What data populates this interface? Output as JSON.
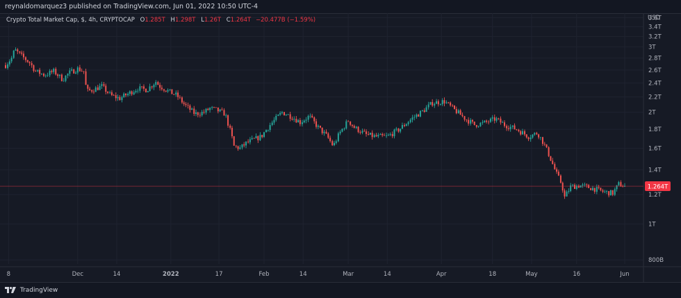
{
  "header": {
    "published_line": "reynaldomarquez3 published on TradingView.com, Jun 01, 2022 10:50 UTC-4"
  },
  "legend": {
    "symbol": "Crypto Total Market Cap, $, 4h, CRYPTOCAP",
    "o_label": "O",
    "o_value": "1.285T",
    "h_label": "H",
    "h_value": "1.298T",
    "l_label": "L",
    "l_value": "1.26T",
    "c_label": "C",
    "c_value": "1.264T",
    "change": "−20.477B (−1.59%)"
  },
  "footer": {
    "brand": "TradingView"
  },
  "colors": {
    "up": "#26a69a",
    "down": "#ef5350",
    "grid": "#1f2330",
    "background": "#161a25",
    "price_badge": "#f23645"
  },
  "chart_data": {
    "type": "candlestick",
    "currency_label": "USD",
    "y_scale": "log",
    "ylim": [
      "780B",
      "3.7T"
    ],
    "y_ticks": [
      {
        "value": 0.8,
        "label": "800B"
      },
      {
        "value": 1.0,
        "label": "1T"
      },
      {
        "value": 1.2,
        "label": "1.2T"
      },
      {
        "value": 1.4,
        "label": "1.4T"
      },
      {
        "value": 1.6,
        "label": "1.6T"
      },
      {
        "value": 1.8,
        "label": "1.8T"
      },
      {
        "value": 2.0,
        "label": "2T"
      },
      {
        "value": 2.2,
        "label": "2.2T"
      },
      {
        "value": 2.4,
        "label": "2.4T"
      },
      {
        "value": 2.6,
        "label": "2.6T"
      },
      {
        "value": 2.8,
        "label": "2.8T"
      },
      {
        "value": 3.0,
        "label": "3T"
      },
      {
        "value": 3.2,
        "label": "3.2T"
      },
      {
        "value": 3.4,
        "label": "3.4T"
      },
      {
        "value": 3.6,
        "label": "3.6T"
      }
    ],
    "x_ticks": [
      {
        "date": "2021-11-08",
        "label": "8"
      },
      {
        "date": "2021-12-01",
        "label": "Dec"
      },
      {
        "date": "2021-12-14",
        "label": "14"
      },
      {
        "date": "2022-01-01",
        "label": "2022",
        "bold": true
      },
      {
        "date": "2022-01-17",
        "label": "17"
      },
      {
        "date": "2022-02-01",
        "label": "Feb"
      },
      {
        "date": "2022-02-14",
        "label": "14"
      },
      {
        "date": "2022-03-01",
        "label": "Mar"
      },
      {
        "date": "2022-03-14",
        "label": "14"
      },
      {
        "date": "2022-04-01",
        "label": "Apr"
      },
      {
        "date": "2022-04-18",
        "label": "18"
      },
      {
        "date": "2022-05-01",
        "label": "May"
      },
      {
        "date": "2022-05-16",
        "label": "16"
      },
      {
        "date": "2022-06-01",
        "label": "Jun"
      }
    ],
    "x_range": [
      "2021-11-07",
      "2022-06-04"
    ],
    "last_price": {
      "value": 1.264,
      "label": "1.264T"
    },
    "series": [
      {
        "x": [
          "2021-11-07",
          "2021-11-09",
          "2021-11-10",
          "2021-11-12",
          "2021-11-15",
          "2021-11-17",
          "2021-11-20",
          "2021-11-23",
          "2021-11-26",
          "2021-11-28",
          "2021-12-01",
          "2021-12-03",
          "2021-12-04",
          "2021-12-04",
          "2021-12-06",
          "2021-12-09",
          "2021-12-12",
          "2021-12-15",
          "2021-12-18",
          "2021-12-21",
          "2021-12-24",
          "2021-12-27",
          "2021-12-28",
          "2022-01-01",
          "2022-01-03",
          "2022-01-05",
          "2022-01-06",
          "2022-01-09",
          "2022-01-12",
          "2022-01-14",
          "2022-01-16",
          "2022-01-19",
          "2022-01-21",
          "2022-01-22",
          "2022-01-24",
          "2022-01-26",
          "2022-01-28",
          "2022-01-31",
          "2022-02-03",
          "2022-02-07",
          "2022-02-10",
          "2022-02-13",
          "2022-02-16",
          "2022-02-19",
          "2022-02-22",
          "2022-02-24",
          "2022-02-26",
          "2022-03-01",
          "2022-03-03",
          "2022-03-07",
          "2022-03-10",
          "2022-03-14",
          "2022-03-18",
          "2022-03-22",
          "2022-03-26",
          "2022-03-29",
          "2022-04-02",
          "2022-04-05",
          "2022-04-09",
          "2022-04-12",
          "2022-04-15",
          "2022-04-19",
          "2022-04-22",
          "2022-04-26",
          "2022-04-30",
          "2022-05-03",
          "2022-05-05",
          "2022-05-07",
          "2022-05-09",
          "2022-05-11",
          "2022-05-12",
          "2022-05-14",
          "2022-05-17",
          "2022-05-21",
          "2022-05-25",
          "2022-05-28",
          "2022-05-30",
          "2022-06-01"
        ],
        "y": [
          2.68,
          2.8,
          2.95,
          2.85,
          2.72,
          2.58,
          2.52,
          2.58,
          2.45,
          2.55,
          2.62,
          2.58,
          2.25,
          2.28,
          2.3,
          2.35,
          2.22,
          2.18,
          2.25,
          2.32,
          2.3,
          2.42,
          2.36,
          2.26,
          2.22,
          2.12,
          2.08,
          1.98,
          2.0,
          2.05,
          2.03,
          1.98,
          1.75,
          1.62,
          1.6,
          1.65,
          1.68,
          1.72,
          1.85,
          2.0,
          1.95,
          1.88,
          1.95,
          1.82,
          1.72,
          1.62,
          1.75,
          1.9,
          1.82,
          1.74,
          1.72,
          1.72,
          1.8,
          1.92,
          2.02,
          2.12,
          2.14,
          2.04,
          1.92,
          1.85,
          1.87,
          1.92,
          1.85,
          1.8,
          1.72,
          1.76,
          1.65,
          1.52,
          1.38,
          1.28,
          1.18,
          1.26,
          1.27,
          1.25,
          1.22,
          1.21,
          1.28,
          1.264
        ]
      }
    ]
  }
}
